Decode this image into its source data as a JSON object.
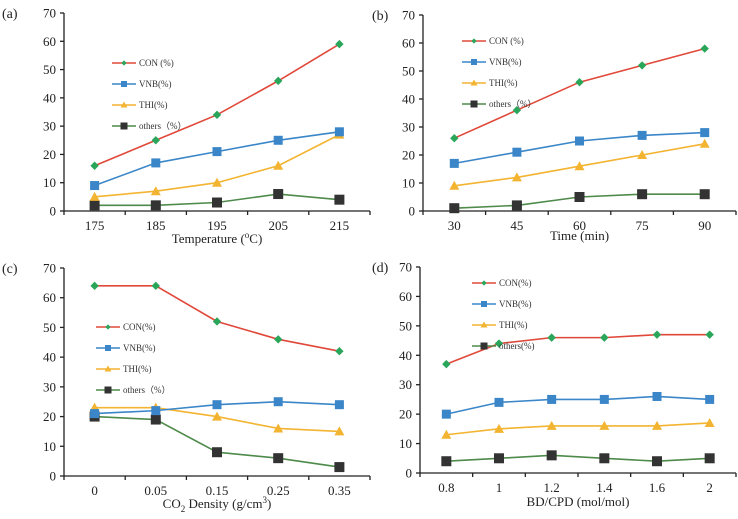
{
  "colors": {
    "CON": "#e0483a",
    "CON_marker": "#2aa65a",
    "VNB": "#3a86c8",
    "THI": "#f3b431",
    "others": "#4e8a4a",
    "others_marker": "#333333"
  },
  "chart_data": [
    {
      "type": "line",
      "panel": "(a)",
      "xlabel": "Temperature (oC)",
      "xlabel_parts": [
        "Temperature (",
        "o",
        "C)"
      ],
      "ylabel": "",
      "ylim": [
        0,
        70
      ],
      "yticks": [
        "0",
        "10",
        "20",
        "30",
        "40",
        "50",
        "60",
        "70"
      ],
      "categories": [
        "175",
        "185",
        "195",
        "205",
        "215"
      ],
      "legend_position": "upper-left",
      "series": [
        {
          "name": "CON (%)",
          "key": "CON",
          "values": [
            16,
            25,
            34,
            46,
            59
          ]
        },
        {
          "name": "VNB(%)",
          "key": "VNB",
          "values": [
            9,
            17,
            21,
            25,
            28
          ]
        },
        {
          "name": "THI(%)",
          "key": "THI",
          "values": [
            5,
            7,
            10,
            16,
            27
          ]
        },
        {
          "name": "others（%）",
          "key": "others",
          "values": [
            2,
            2,
            3,
            6,
            4
          ]
        }
      ]
    },
    {
      "type": "line",
      "panel": "(b)",
      "xlabel": "Time (min)",
      "xlabel_parts": [
        "Time (min)",
        "",
        ""
      ],
      "ylabel": "",
      "ylim": [
        0,
        70
      ],
      "yticks": [
        "0",
        "10",
        "20",
        "30",
        "40",
        "50",
        "60",
        "70"
      ],
      "categories": [
        "30",
        "45",
        "60",
        "75",
        "90"
      ],
      "legend_position": "upper-left",
      "series": [
        {
          "name": "CON (%)",
          "key": "CON",
          "values": [
            26,
            36,
            46,
            52,
            58
          ]
        },
        {
          "name": "VNB(%)",
          "key": "VNB",
          "values": [
            17,
            21,
            25,
            27,
            28
          ]
        },
        {
          "name": "THI(%)",
          "key": "THI",
          "values": [
            9,
            12,
            16,
            20,
            24
          ]
        },
        {
          "name": "others（%）",
          "key": "others",
          "values": [
            1,
            2,
            5,
            6,
            6
          ]
        }
      ]
    },
    {
      "type": "line",
      "panel": "(c)",
      "xlabel": "CO2 Density (g/cm3)",
      "xlabel_parts": [
        "CO",
        "2",
        " Density (g/cm",
        "3",
        ")"
      ],
      "ylabel": "",
      "ylim": [
        0,
        70
      ],
      "yticks": [
        "0",
        "10",
        "20",
        "30",
        "40",
        "50",
        "60",
        "70"
      ],
      "categories": [
        "0",
        "0.05",
        "0.15",
        "0.25",
        "0.35"
      ],
      "legend_position": "middle-left",
      "series": [
        {
          "name": "CON(%)",
          "key": "CON",
          "values": [
            64,
            64,
            52,
            46,
            42
          ]
        },
        {
          "name": "VNB(%)",
          "key": "VNB",
          "values": [
            21,
            22,
            24,
            25,
            24
          ]
        },
        {
          "name": "THI(%)",
          "key": "THI",
          "values": [
            23,
            23,
            20,
            16,
            15
          ]
        },
        {
          "name": "others（%）",
          "key": "others",
          "values": [
            20,
            19,
            8,
            6,
            3
          ]
        }
      ]
    },
    {
      "type": "line",
      "panel": "(d)",
      "xlabel": "BD/CPD (mol/mol)",
      "xlabel_parts": [
        "BD/CPD (mol/mol)",
        "",
        ""
      ],
      "ylabel": "",
      "ylim": [
        0,
        70
      ],
      "yticks": [
        "0",
        "10",
        "20",
        "30",
        "40",
        "50",
        "60",
        "70"
      ],
      "categories": [
        "0.8",
        "1",
        "1.2",
        "1.4",
        "1.6",
        "2"
      ],
      "legend_position": "upper-left",
      "series": [
        {
          "name": "CON(%)",
          "key": "CON",
          "values": [
            37,
            44,
            46,
            46,
            47,
            47
          ]
        },
        {
          "name": "VNB(%)",
          "key": "VNB",
          "values": [
            20,
            24,
            25,
            25,
            26,
            25
          ]
        },
        {
          "name": "THI(%)",
          "key": "THI",
          "values": [
            13,
            15,
            16,
            16,
            16,
            17
          ]
        },
        {
          "name": "others(%)",
          "key": "others",
          "values": [
            4,
            5,
            6,
            5,
            4,
            5
          ]
        }
      ]
    }
  ]
}
